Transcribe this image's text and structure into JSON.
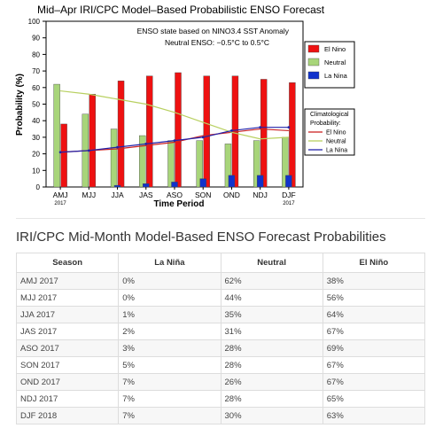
{
  "chart_data": {
    "type": "bar",
    "title": "Mid–Apr IRI/CPC Model–Based Probabilistic ENSO Forecast",
    "xlabel": "Time Period",
    "ylabel": "Probability (%)",
    "ylim": [
      0,
      100
    ],
    "yticks": [
      "0",
      "10",
      "20",
      "30",
      "40",
      "50",
      "60",
      "70",
      "80",
      "90",
      "100"
    ],
    "categories": [
      "AMJ",
      "MJJ",
      "JJA",
      "JAS",
      "ASO",
      "SON",
      "OND",
      "NDJ",
      "DJF"
    ],
    "category_sublabels": [
      "2017",
      "",
      "",
      "",
      "",
      "",
      "",
      "",
      "2017"
    ],
    "annotation_line1": "ENSO state based on NINO3.4 SST Anomaly",
    "annotation_line2": "Neutral ENSO: −0.5°C to 0.5°C",
    "series": [
      {
        "name": "El Nino",
        "color": "#ee1111",
        "values": [
          38,
          56,
          64,
          67,
          69,
          67,
          67,
          65,
          63
        ]
      },
      {
        "name": "Neutral",
        "color": "#a8d57a",
        "values": [
          62,
          44,
          35,
          31,
          28,
          28,
          26,
          28,
          30
        ]
      },
      {
        "name": "La Nina",
        "color": "#1133cc",
        "values": [
          0,
          0,
          1,
          2,
          3,
          5,
          7,
          7,
          7
        ]
      }
    ],
    "climatology": {
      "title_line1": "Climatological",
      "title_line2": "Probability:",
      "lines": [
        {
          "name": "El Nino",
          "color": "#cc2222",
          "values": [
            21,
            22,
            23,
            25,
            27,
            31,
            33,
            35,
            34
          ]
        },
        {
          "name": "Neutral",
          "color": "#b8d060",
          "values": [
            58,
            56,
            53,
            50,
            45,
            39,
            33,
            29,
            30
          ]
        },
        {
          "name": "La Nina",
          "color": "#2222aa",
          "values": [
            21,
            22,
            24,
            26,
            28,
            30,
            34,
            36,
            36
          ]
        }
      ]
    },
    "legend_position": "right"
  },
  "table": {
    "title": "IRI/CPC Mid-Month Model-Based ENSO Forecast Probabilities",
    "headers": [
      "Season",
      "La Niña",
      "Neutral",
      "El Niño"
    ],
    "rows": [
      [
        "AMJ 2017",
        "0%",
        "62%",
        "38%"
      ],
      [
        "MJJ 2017",
        "0%",
        "44%",
        "56%"
      ],
      [
        "JJA 2017",
        "1%",
        "35%",
        "64%"
      ],
      [
        "JAS 2017",
        "2%",
        "31%",
        "67%"
      ],
      [
        "ASO 2017",
        "3%",
        "28%",
        "69%"
      ],
      [
        "SON 2017",
        "5%",
        "28%",
        "67%"
      ],
      [
        "OND 2017",
        "7%",
        "26%",
        "67%"
      ],
      [
        "NDJ 2017",
        "7%",
        "28%",
        "65%"
      ],
      [
        "DJF 2018",
        "7%",
        "30%",
        "63%"
      ]
    ]
  }
}
